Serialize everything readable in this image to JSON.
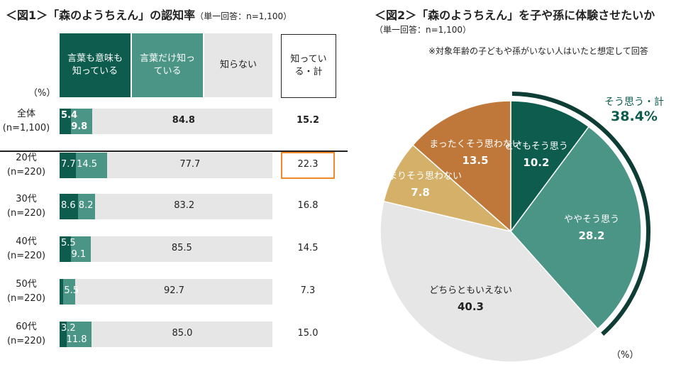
{
  "fig1": {
    "title": "＜図1＞「森のようちえん」の認知率",
    "subtitle": "（単一回答：n=1,100）",
    "unit": "（%）",
    "legend": {
      "both": "言葉も意味も知っている",
      "word_only": "言葉だけ知っている",
      "unknown": "知らない",
      "total": "知っている・計"
    },
    "highlight_color": "#ef8a2a",
    "colors": {
      "both": "#0d5c4e",
      "word_only": "#4a9585",
      "unknown": "#e6e6e6"
    }
  },
  "fig2": {
    "title": "＜図2＞「森のようちえん」を子や孫に体験させたいか",
    "subtitle": "（単一回答：n=1,100）",
    "note": "※対象年齢の子どもや孫がいない人はいたと想定して回答",
    "total_label": "そう思う・計",
    "total_value": "38.4%",
    "unit": "（%）"
  },
  "chart_data": [
    {
      "type": "bar",
      "orientation": "horizontal",
      "stacked": true,
      "title": "＜図1＞「森のようちえん」の認知率",
      "categories": [
        "全体\n(n=1,100)",
        "20代\n(n=220)",
        "30代\n(n=220)",
        "40代\n(n=220)",
        "50代\n(n=220)",
        "60代\n(n=220)"
      ],
      "series": [
        {
          "name": "言葉も意味も知っている",
          "values": [
            5.4,
            7.7,
            8.6,
            5.5,
            1.8,
            3.2
          ],
          "labels": [
            "5.4",
            "7.7",
            "8.6",
            "5.5",
            "",
            "3.2"
          ]
        },
        {
          "name": "言葉だけ知っている",
          "values": [
            9.8,
            14.5,
            8.2,
            9.1,
            5.5,
            11.8
          ],
          "labels": [
            "9.8",
            "14.5",
            "8.2",
            "9.1",
            "5.5",
            "11.8"
          ]
        },
        {
          "name": "知らない",
          "values": [
            84.8,
            77.7,
            83.2,
            85.5,
            92.7,
            85.0
          ],
          "labels": [
            "84.8",
            "77.7",
            "83.2",
            "85.5",
            "92.7",
            "85.0"
          ]
        }
      ],
      "totals": {
        "name": "知っている・計",
        "values": [
          "15.2",
          "22.3",
          "16.8",
          "14.5",
          "7.3",
          "15.0"
        ]
      },
      "highlighted_total_index": 1
    },
    {
      "type": "pie",
      "title": "＜図2＞「森のようちえん」を子や孫に体験させたいか",
      "slices": [
        {
          "label": "とてもそう思う",
          "value": 10.2,
          "color": "#0d5c4e",
          "display": "10.2"
        },
        {
          "label": "ややそう思う",
          "value": 28.2,
          "color": "#4a9585",
          "display": "28.2"
        },
        {
          "label": "どちらともいえない",
          "value": 40.3,
          "color": "#e6e6e6",
          "display": "40.3"
        },
        {
          "label": "あまりそう思わない",
          "value": 7.8,
          "color": "#d5b068",
          "display": "7.8"
        },
        {
          "label": "まったくそう思わない",
          "value": 13.5,
          "color": "#c0783a",
          "display": "13.5"
        }
      ],
      "arc_color": "#0d3d34"
    }
  ]
}
